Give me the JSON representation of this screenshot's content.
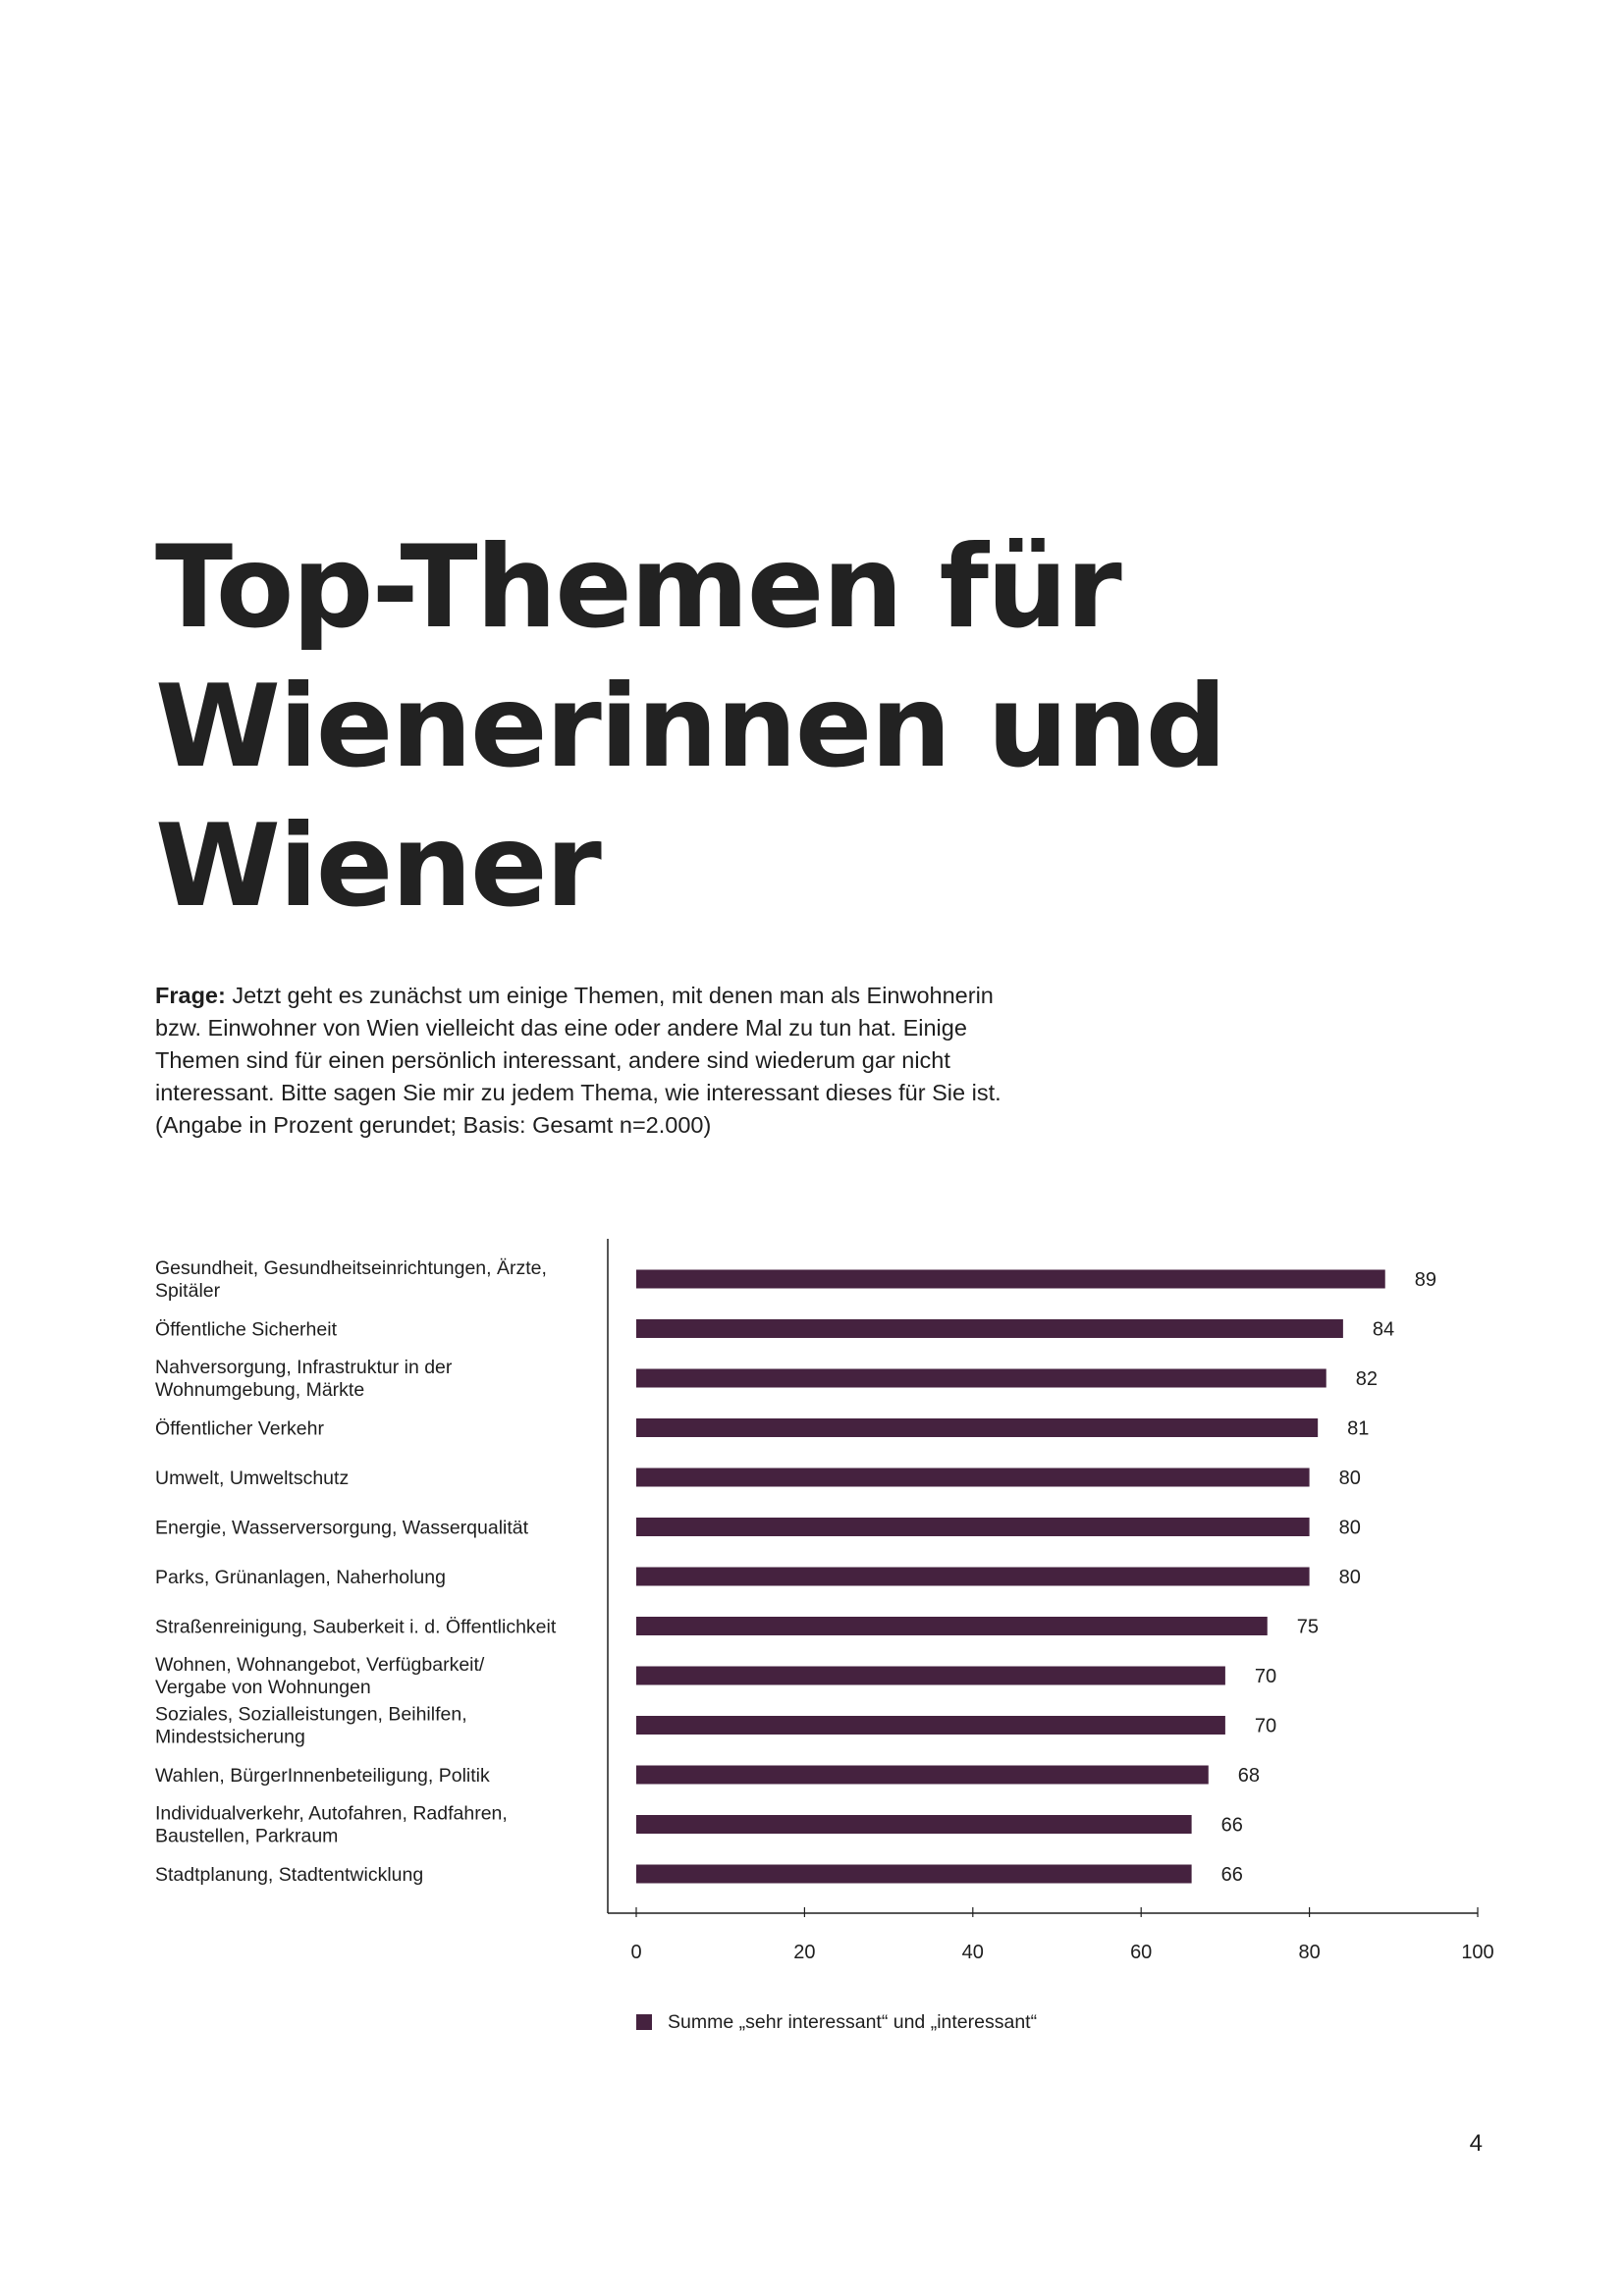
{
  "title_lines": [
    "Top-Themen für",
    "Wienerinnen und",
    "Wiener"
  ],
  "question": {
    "label": "Frage:",
    "lines": [
      " Jetzt geht es zunächst um einige Themen, mit denen man als Einwohnerin",
      "bzw. Einwohner von Wien vielleicht das eine oder andere Mal zu tun hat. Einige",
      "Themen sind für einen persönlich interessant, andere sind wiederum gar nicht",
      "interessant. Bitte sagen Sie mir zu jedem Thema, wie interessant dieses für Sie ist.",
      "(Angabe in Prozent gerundet; Basis: Gesamt n=2.000)"
    ]
  },
  "chart_data": {
    "type": "bar",
    "orientation": "horizontal",
    "categories": [
      [
        "Gesundheit, Gesundheitseinrichtungen, Ärzte,",
        "Spitäler"
      ],
      [
        "Öffentliche Sicherheit"
      ],
      [
        "Nahversorgung, Infrastruktur in der",
        "Wohnumgebung, Märkte"
      ],
      [
        "Öffentlicher Verkehr"
      ],
      [
        "Umwelt, Umweltschutz"
      ],
      [
        "Energie, Wasserversorgung, Wasserqualität"
      ],
      [
        "Parks, Grünanlagen, Naherholung"
      ],
      [
        "Straßenreinigung, Sauberkeit i. d. Öffentlichkeit"
      ],
      [
        "Wohnen, Wohnangebot, Verfügbarkeit/",
        "Vergabe von Wohnungen"
      ],
      [
        "Soziales, Sozialleistungen, Beihilfen,",
        "Mindestsicherung"
      ],
      [
        "Wahlen, BürgerInnenbeteiligung, Politik"
      ],
      [
        "Individualverkehr, Autofahren, Radfahren,",
        "Baustellen, Parkraum"
      ],
      [
        "Stadtplanung, Stadtentwicklung"
      ]
    ],
    "series": [
      {
        "name": "Summe „sehr interessant“ und „interessant“",
        "values": [
          89,
          84,
          82,
          81,
          80,
          80,
          80,
          75,
          70,
          70,
          68,
          66,
          66
        ]
      }
    ],
    "xlim": [
      0,
      100
    ],
    "xticks": [
      0,
      20,
      40,
      60,
      80,
      100
    ],
    "legend_position": "bottom-left",
    "bar_color": "#45223f"
  },
  "page_number": "4"
}
